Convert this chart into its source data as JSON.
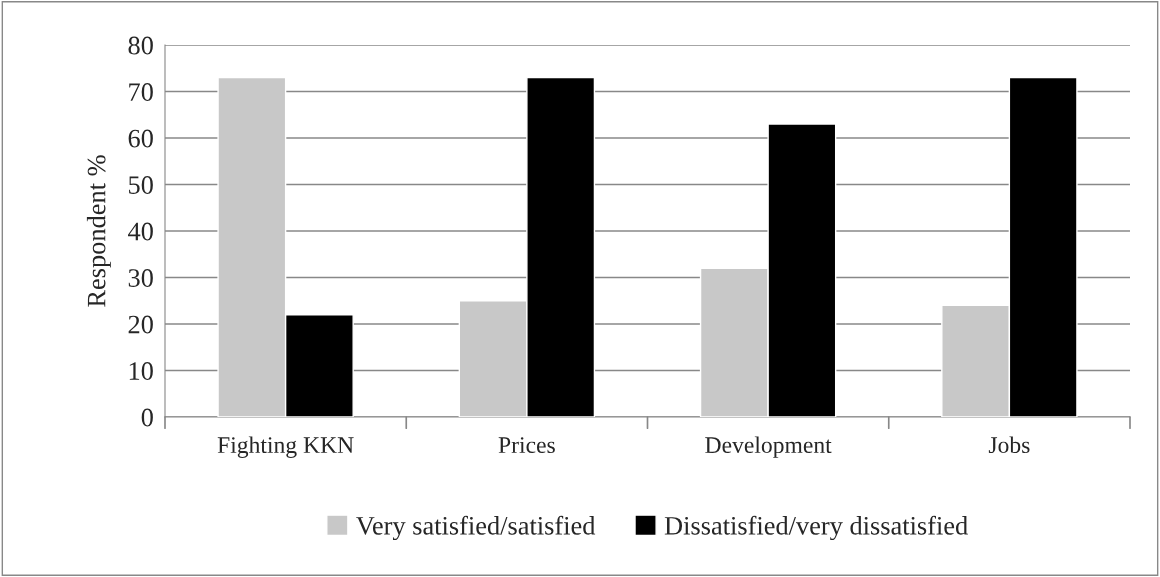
{
  "chart_data": {
    "type": "bar",
    "ylabel": "Respondent %",
    "categories": [
      "Fighting KKN",
      "Prices",
      "Development",
      "Jobs"
    ],
    "series": [
      {
        "name": "Very satisfied/satisfied",
        "color": "#c8c8c8",
        "values": [
          73,
          25,
          32,
          24
        ]
      },
      {
        "name": "Dissatisfied/very dissatisfied",
        "color": "#000000",
        "values": [
          22,
          73,
          63,
          73
        ]
      }
    ],
    "ylim": [
      0,
      80
    ],
    "yticks": [
      0,
      10,
      20,
      30,
      40,
      50,
      60,
      70,
      80
    ],
    "grid": "y",
    "legend": "bottom"
  }
}
